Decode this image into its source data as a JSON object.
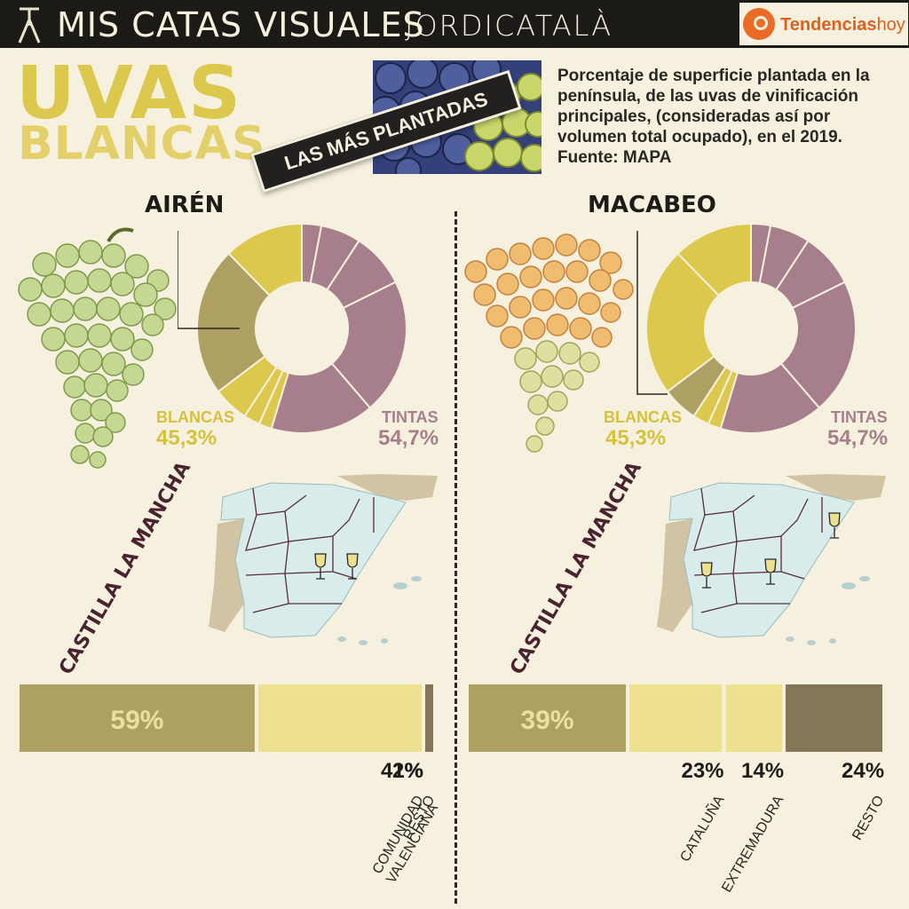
{
  "header": {
    "title": "MIS CATAS VISUALES",
    "author": "JORDICATALÀ",
    "brand_main": "Tendencias",
    "brand_sub": "hoy"
  },
  "headline": {
    "line1": "UVAS",
    "line2": "BLANCAS",
    "ribbon": "LAS MÁS PLANTADAS"
  },
  "description": "Porcentaje de superficie plantada en la península, de las uvas de vinificación principales, (consideradas así por volumen total ocupado), en el 2019. Fuente: MAPA",
  "colors": {
    "white_grape": "#dcc84d",
    "red_grape": "#a77f8c",
    "bar_main": "#aea063",
    "bar_second": "#ede18f",
    "bar_rest": "#857657"
  },
  "chart_data": [
    {
      "type": "pie",
      "variety": "AIRÉN",
      "groups": [
        {
          "label": "BLANCAS",
          "value_text": "45,3%",
          "value": 45.3
        },
        {
          "label": "TINTAS",
          "value_text": "54,7%",
          "value": 54.7
        }
      ],
      "slices": [
        {
          "group": "tintas",
          "value": 3.0
        },
        {
          "group": "tintas",
          "value": 6.2
        },
        {
          "group": "tintas",
          "value": 8.5
        },
        {
          "group": "tintas",
          "value": 21.0
        },
        {
          "group": "tintas",
          "value": 16.0
        },
        {
          "group": "blancas",
          "value": 2.0
        },
        {
          "group": "blancas",
          "value": 2.5
        },
        {
          "group": "blancas",
          "value": 5.5
        },
        {
          "group": "blancas",
          "value": 23.0,
          "highlight": true
        },
        {
          "group": "blancas",
          "value": 12.3
        }
      ]
    },
    {
      "type": "pie",
      "variety": "MACABEO",
      "groups": [
        {
          "label": "BLANCAS",
          "value_text": "45,3%",
          "value": 45.3
        },
        {
          "label": "TINTAS",
          "value_text": "54,7%",
          "value": 54.7
        }
      ],
      "slices": [
        {
          "group": "tintas",
          "value": 3.0
        },
        {
          "group": "tintas",
          "value": 6.2
        },
        {
          "group": "tintas",
          "value": 8.5
        },
        {
          "group": "tintas",
          "value": 21.0
        },
        {
          "group": "tintas",
          "value": 16.0
        },
        {
          "group": "blancas",
          "value": 2.0
        },
        {
          "group": "blancas",
          "value": 2.5
        },
        {
          "group": "blancas",
          "value": 5.5,
          "highlight": true
        },
        {
          "group": "blancas",
          "value": 23.0
        },
        {
          "group": "blancas",
          "value": 12.3
        }
      ]
    },
    {
      "type": "bar",
      "variety": "AIRÉN",
      "categories": [
        "CASTILLA LA MANCHA",
        "COMUNIDAD VALENCIANA",
        "RESTO"
      ],
      "values": [
        59,
        41,
        2
      ],
      "labels": [
        "59%",
        "41%",
        "2%"
      ]
    },
    {
      "type": "bar",
      "variety": "MACABEO",
      "categories": [
        "CASTILLA LA MANCHA",
        "CATALUÑA",
        "EXTREMADURA",
        "RESTO"
      ],
      "values": [
        39,
        23,
        14,
        24
      ],
      "labels": [
        "39%",
        "23%",
        "14%",
        "24%"
      ]
    }
  ]
}
